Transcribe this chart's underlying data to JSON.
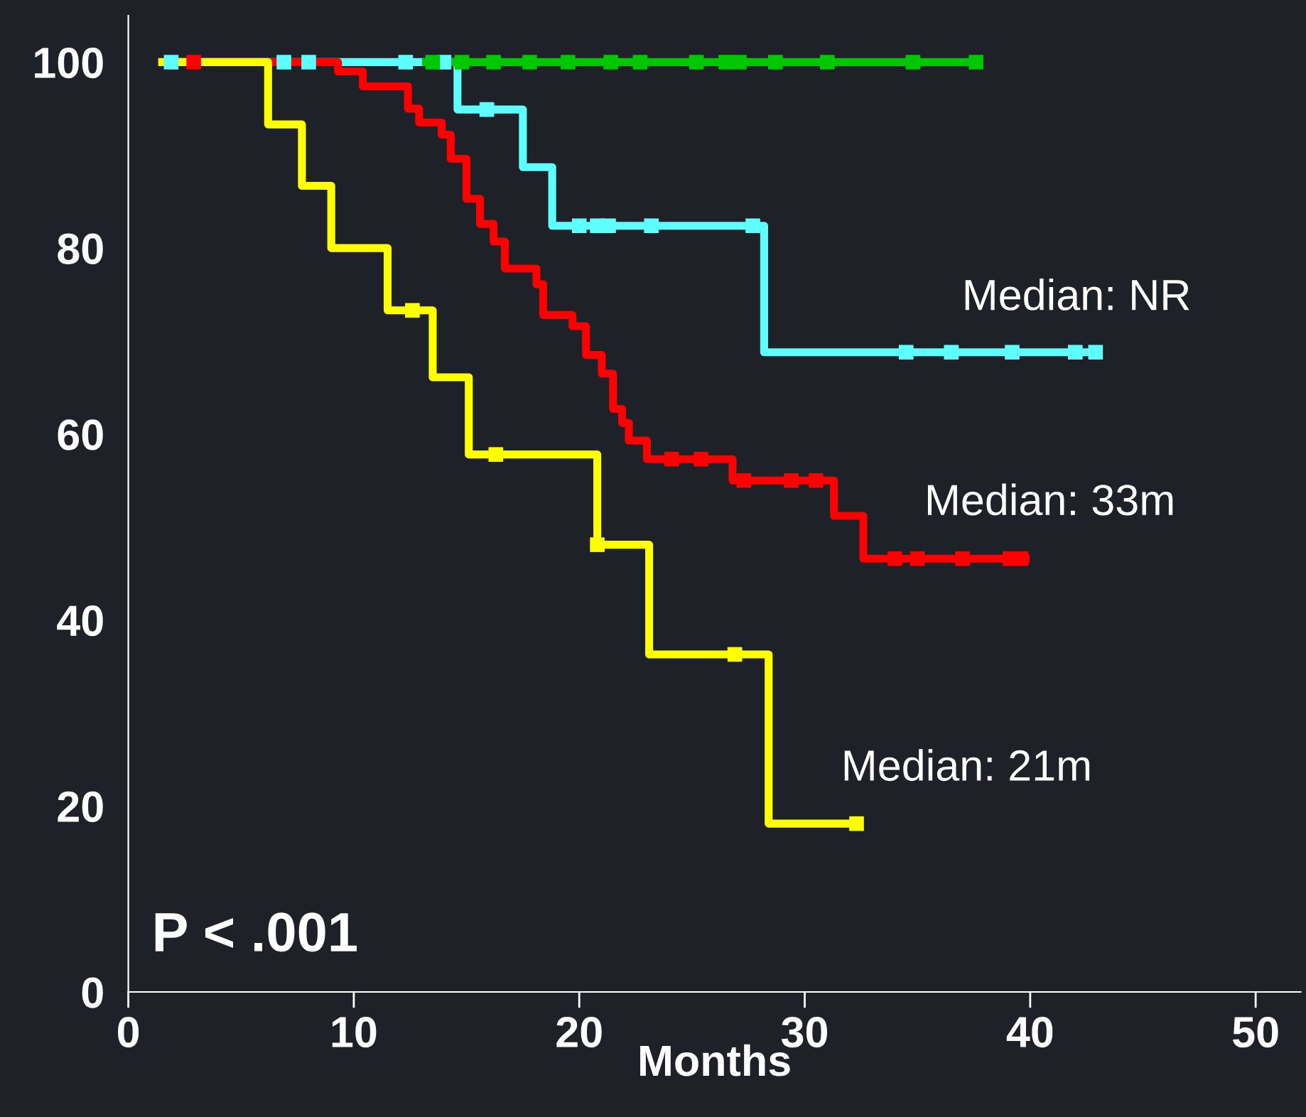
{
  "chart_data": {
    "type": "step",
    "xlabel": "Months",
    "xlim": [
      0,
      52
    ],
    "ylim": [
      0,
      105
    ],
    "xticks": [
      0,
      10,
      20,
      30,
      40,
      50
    ],
    "yticks": [
      0,
      20,
      40,
      60,
      80,
      100
    ],
    "grid": false,
    "legend": false,
    "line_style": "solid",
    "series": [
      {
        "color": "#5effff",
        "x": [
          1.9,
          14.6,
          17.5,
          18.8,
          28.2,
          43.0
        ],
        "values": [
          100,
          94.9,
          88.7,
          82.4,
          68.8,
          68.8
        ]
      },
      {
        "color": "#00c800",
        "x": [
          13.2,
          37.6
        ],
        "values": [
          100,
          100
        ]
      },
      {
        "color": "#ff0000",
        "x": [
          2.9,
          9.3,
          10.4,
          12.4,
          12.9,
          13.9,
          14.3,
          15.0,
          15.6,
          16.2,
          16.7,
          18.1,
          18.4,
          19.7,
          20.3,
          21.0,
          21.5,
          21.9,
          22.2,
          23.0,
          26.8,
          31.3,
          32.6,
          39.8
        ],
        "values": [
          100,
          99.0,
          97.4,
          95.0,
          93.5,
          92.2,
          89.6,
          85.3,
          82.6,
          80.7,
          77.8,
          76.1,
          72.8,
          71.6,
          68.5,
          66.5,
          62.7,
          61.2,
          59.3,
          57.3,
          55.0,
          51.2,
          46.6,
          46.6
        ]
      },
      {
        "color": "#ffff00",
        "x": [
          1.5,
          6.2,
          7.7,
          9.0,
          11.5,
          13.5,
          15.1,
          20.8,
          23.1,
          28.4,
          32.3
        ],
        "values": [
          100,
          93.3,
          86.7,
          80,
          73.3,
          66.1,
          57.8,
          48.1,
          36.3,
          18.1,
          18.1
        ]
      },
      {
        "type": "scatter",
        "marker": "square",
        "color": "#5effff",
        "x": [
          1.9,
          6.9,
          8.0,
          12.3,
          14.0,
          15.9,
          20.0,
          20.8,
          21.3,
          23.2,
          27.7,
          34.5,
          36.5,
          39.2,
          42.0,
          42.9
        ],
        "values": [
          100,
          100,
          100,
          100,
          100,
          94.9,
          82.4,
          82.4,
          82.4,
          82.4,
          82.4,
          68.8,
          68.8,
          68.8,
          68.8,
          68.8
        ]
      },
      {
        "type": "scatter",
        "marker": "square",
        "color": "#00c800",
        "x": [
          13.5,
          14.8,
          16.2,
          17.8,
          19.5,
          21.4,
          22.7,
          25.2,
          26.5,
          27.1,
          28.7,
          31.0,
          34.8,
          37.6
        ],
        "values": [
          100,
          100,
          100,
          100,
          100,
          100,
          100,
          100,
          100,
          100,
          100,
          100,
          100,
          100
        ]
      },
      {
        "type": "scatter",
        "marker": "square",
        "color": "#ff0000",
        "x": [
          2.9,
          24.1,
          25.4,
          27.3,
          29.4,
          30.5,
          34.0,
          35.0,
          37.0,
          39.1,
          39.6
        ],
        "values": [
          100,
          57.3,
          57.3,
          55.0,
          55.0,
          55.0,
          46.6,
          46.6,
          46.6,
          46.6,
          46.6
        ]
      },
      {
        "type": "scatter",
        "marker": "square",
        "color": "#ffff00",
        "x": [
          12.6,
          16.3,
          20.8,
          26.9,
          32.3
        ],
        "values": [
          73.3,
          57.8,
          48.1,
          36.3,
          18.1
        ]
      }
    ],
    "annotations": [
      "Median: NR",
      "Median: 33m",
      "Median: 21m",
      "P < .001"
    ]
  }
}
